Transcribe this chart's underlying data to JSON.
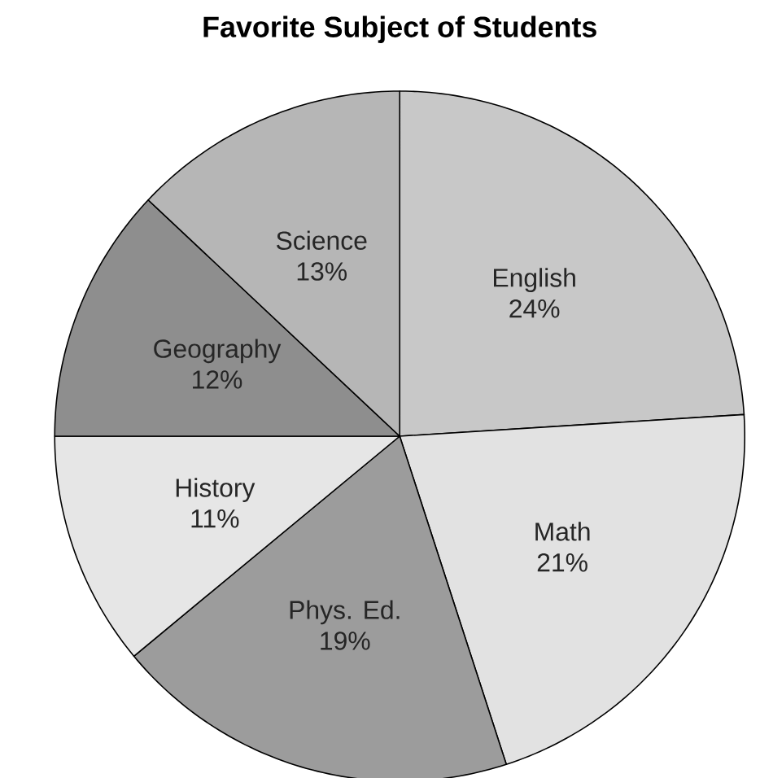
{
  "chart_data": {
    "type": "pie",
    "title": "Favorite Subject of Students",
    "categories": [
      "English",
      "Math",
      "Phys. Ed.",
      "History",
      "Geography",
      "Science"
    ],
    "values": [
      24,
      21,
      19,
      11,
      12,
      13
    ],
    "value_labels": [
      "24%",
      "21%",
      "19%",
      "11%",
      "12%",
      "13%"
    ],
    "colors": [
      "#c8c8c8",
      "#e2e2e2",
      "#9c9c9c",
      "#e6e6e6",
      "#8e8e8e",
      "#b6b6b6"
    ]
  }
}
